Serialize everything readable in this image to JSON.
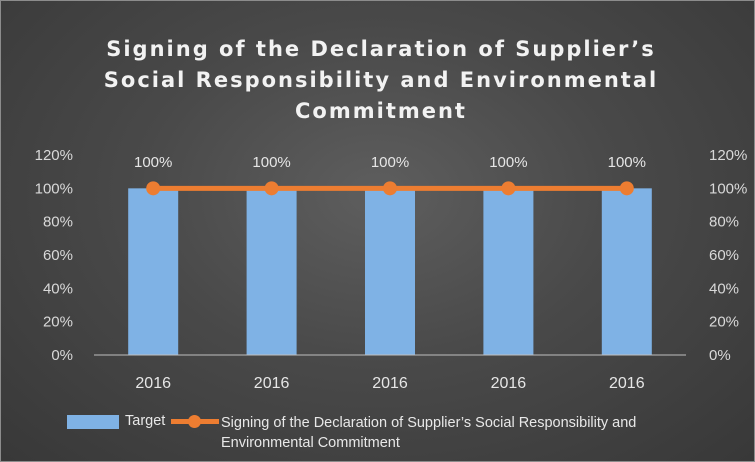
{
  "chart_data": {
    "type": "bar",
    "title": "Signing of the Declaration of Supplier’s Social Responsibility and Environmental Commitment",
    "categories": [
      "2016",
      "2016",
      "2016",
      "2016",
      "2016"
    ],
    "series": [
      {
        "name": "Target",
        "type": "bar",
        "values": [
          100,
          100,
          100,
          100,
          100
        ],
        "color": "#7fb2e5",
        "axis": "left"
      },
      {
        "name": "Signing of the Declaration of Supplier’s Social Responsibility and Environmental Commitment",
        "type": "line",
        "values": [
          100,
          100,
          100,
          100,
          100
        ],
        "color": "#ed7d31",
        "axis": "right"
      }
    ],
    "data_labels": [
      "100%",
      "100%",
      "100%",
      "100%",
      "100%"
    ],
    "ylim": [
      0,
      120
    ],
    "y_ticks": [
      "0%",
      "20%",
      "40%",
      "60%",
      "80%",
      "100%",
      "120%"
    ],
    "y2_ticks": [
      "0%",
      "20%",
      "40%",
      "60%",
      "80%",
      "100%",
      "120%"
    ],
    "grid": false,
    "legend_position": "bottom",
    "background": "#474747"
  }
}
